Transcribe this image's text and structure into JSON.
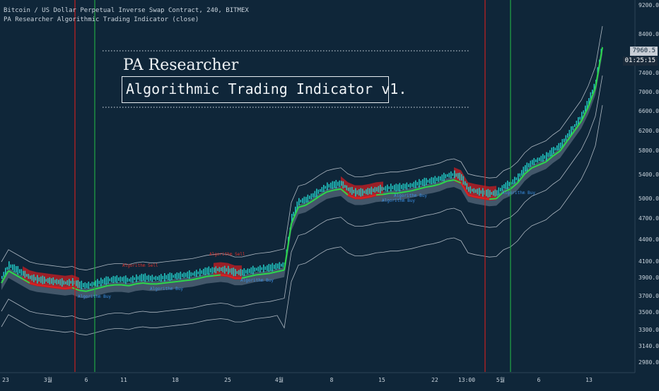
{
  "header": {
    "symbol_line": "Bitcoin / US Dollar Perpetual Inverse Swap Contract, 240, BITMEX",
    "indicator_line": "PA Researcher Algorithmic Trading Indicator  (close)"
  },
  "overlay": {
    "title": "PA Researcher",
    "subtitle": "Algorithmic Trading Indicator v1."
  },
  "badges": {
    "price": "7960.5",
    "timer": "01:25:15"
  },
  "chart_data": {
    "type": "line",
    "title": "",
    "xlabel": "",
    "ylabel": "",
    "ylim": [
      2800,
      9300
    ],
    "y_ticks": [
      "9200.0",
      "8400.0",
      "7960.5",
      "7400.0",
      "7000.0",
      "6600.0",
      "6200.0",
      "5800.0",
      "5400.0",
      "5000.0",
      "4700.0",
      "4400.0",
      "4100.0",
      "3900.0",
      "3700.0",
      "3500.0",
      "3300.0",
      "3140.0",
      "2980.0"
    ],
    "x_ticks": [
      "23",
      "3월",
      "6",
      "11",
      "18",
      "25",
      "4월",
      "8",
      "15",
      "22",
      "13:00",
      "5월",
      "6",
      "13"
    ],
    "series": [
      {
        "x": [
          0,
          10,
          20,
          30,
          40,
          50,
          60,
          70,
          80,
          90,
          100,
          110,
          120,
          130,
          140,
          150,
          160,
          170,
          180,
          190,
          200,
          210,
          220,
          230,
          240,
          250,
          260,
          270,
          280,
          290,
          300,
          310,
          320,
          330,
          340,
          350,
          360,
          370,
          380,
          390,
          400,
          410,
          420,
          430,
          440,
          450,
          460,
          470,
          480,
          490,
          500,
          510,
          520,
          530,
          540,
          550,
          560,
          570,
          580,
          590,
          600,
          610,
          620,
          630,
          640,
          650,
          660,
          670,
          680,
          690,
          700,
          710,
          720,
          730,
          740,
          750,
          760,
          770,
          780,
          790,
          800,
          810,
          820,
          830,
          840,
          850
        ],
        "values": [
          3900,
          4050,
          4000,
          3950,
          3900,
          3880,
          3870,
          3860,
          3850,
          3840,
          3850,
          3820,
          3810,
          3830,
          3850,
          3870,
          3880,
          3880,
          3870,
          3890,
          3900,
          3890,
          3890,
          3900,
          3910,
          3920,
          3930,
          3940,
          3960,
          3980,
          3990,
          4000,
          3990,
          3960,
          3960,
          3980,
          4000,
          4010,
          4020,
          4040,
          4060,
          4700,
          4950,
          4980,
          5050,
          5130,
          5200,
          5230,
          5250,
          5150,
          5100,
          5100,
          5120,
          5150,
          5160,
          5180,
          5180,
          5200,
          5220,
          5250,
          5280,
          5300,
          5330,
          5380,
          5400,
          5350,
          5150,
          5120,
          5100,
          5080,
          5090,
          5200,
          5250,
          5350,
          5500,
          5600,
          5650,
          5700,
          5800,
          5900,
          6100,
          6300,
          6500,
          6800,
          7200,
          8200
        ]
      }
    ],
    "annotations": [
      "Algorithm Buy",
      "Algorithm Sell"
    ]
  },
  "colors": {
    "background": "#0f2639",
    "axis_text": "#c9d3dc",
    "candles": "#21c4c0",
    "sell_cloud": "#b41e25",
    "trend_up": "#2cd84a",
    "trend_down": "#e02020",
    "buy_label": "#3b8fe3",
    "sell_label": "#e0302a",
    "vline_red": "#c42020",
    "vline_green": "#22a845",
    "price_badge": "#c8ced6",
    "timer_badge": "#1b2b3b"
  }
}
